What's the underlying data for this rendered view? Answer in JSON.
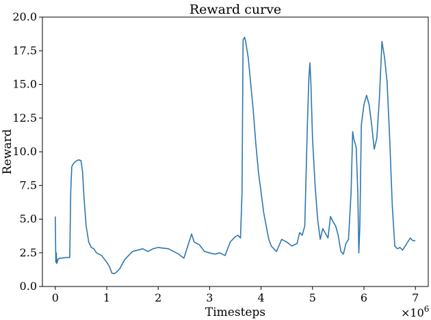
{
  "chart_data": {
    "type": "line",
    "title": "Reward curve",
    "xlabel": "Timesteps",
    "ylabel": "Reward",
    "x_multiplier_label": "×10",
    "x_multiplier_exponent": "6",
    "xlim": [
      -0.25,
      7.25
    ],
    "ylim": [
      0.0,
      20.0
    ],
    "xticks": [
      0,
      1,
      2,
      3,
      4,
      5,
      6,
      7
    ],
    "xtick_labels": [
      "0",
      "1",
      "2",
      "3",
      "4",
      "5",
      "6",
      "7"
    ],
    "yticks": [
      0.0,
      2.5,
      5.0,
      7.5,
      10.0,
      12.5,
      15.0,
      17.5,
      20.0
    ],
    "ytick_labels": [
      "0.0",
      "2.5",
      "5.0",
      "7.5",
      "10.0",
      "12.5",
      "15.0",
      "17.5",
      "20.0"
    ],
    "grid": false,
    "line_color": "#2b76b0",
    "series": [
      {
        "x": [
          0.0,
          0.01,
          0.02,
          0.03,
          0.05,
          0.08,
          0.12,
          0.2,
          0.28,
          0.3,
          0.32,
          0.35,
          0.4,
          0.45,
          0.5,
          0.53,
          0.56,
          0.6,
          0.65,
          0.7,
          0.75,
          0.8,
          0.9,
          1.0,
          1.05,
          1.1,
          1.15,
          1.2,
          1.25,
          1.35,
          1.5,
          1.7,
          1.8,
          1.9,
          2.0,
          2.1,
          2.2,
          2.3,
          2.4,
          2.5,
          2.6,
          2.65,
          2.7,
          2.8,
          2.9,
          3.0,
          3.1,
          3.2,
          3.3,
          3.4,
          3.5,
          3.55,
          3.6,
          3.63,
          3.65,
          3.68,
          3.7,
          3.75,
          3.8,
          3.85,
          3.9,
          3.95,
          4.0,
          4.05,
          4.1,
          4.15,
          4.2,
          4.3,
          4.4,
          4.5,
          4.6,
          4.7,
          4.75,
          4.8,
          4.85,
          4.9,
          4.93,
          4.95,
          4.97,
          5.0,
          5.05,
          5.1,
          5.15,
          5.2,
          5.3,
          5.35,
          5.4,
          5.45,
          5.5,
          5.55,
          5.6,
          5.65,
          5.7,
          5.75,
          5.78,
          5.8,
          5.85,
          5.88,
          5.9,
          5.92,
          5.95,
          6.0,
          6.05,
          6.1,
          6.15,
          6.2,
          6.25,
          6.3,
          6.35,
          6.4,
          6.45,
          6.5,
          6.55,
          6.6,
          6.65,
          6.7,
          6.75,
          6.8,
          6.85,
          6.9,
          6.95,
          7.0
        ],
        "values": [
          5.2,
          1.8,
          2.5,
          1.7,
          2.0,
          2.1,
          2.1,
          2.15,
          2.15,
          7.0,
          8.9,
          9.1,
          9.3,
          9.4,
          9.35,
          8.5,
          6.5,
          4.5,
          3.3,
          2.9,
          2.8,
          2.5,
          2.3,
          1.8,
          1.5,
          1.0,
          0.95,
          1.1,
          1.3,
          2.0,
          2.6,
          2.8,
          2.6,
          2.8,
          2.9,
          2.85,
          2.8,
          2.6,
          2.4,
          2.1,
          3.3,
          3.9,
          3.3,
          3.1,
          2.6,
          2.5,
          2.4,
          2.5,
          2.3,
          3.3,
          3.7,
          3.8,
          3.6,
          7.0,
          18.3,
          18.5,
          18.2,
          17.0,
          15.0,
          13.0,
          10.5,
          8.5,
          7.0,
          5.5,
          4.5,
          3.5,
          3.0,
          2.6,
          3.5,
          3.3,
          3.0,
          3.2,
          4.0,
          3.8,
          4.5,
          12.0,
          15.5,
          16.6,
          15.0,
          11.0,
          7.5,
          5.0,
          3.5,
          4.3,
          3.6,
          5.2,
          4.8,
          4.5,
          3.8,
          2.6,
          2.4,
          3.2,
          3.5,
          7.0,
          11.5,
          11.0,
          10.3,
          7.0,
          2.5,
          4.5,
          12.0,
          13.5,
          14.2,
          13.5,
          12.0,
          10.2,
          11.0,
          14.0,
          18.2,
          17.0,
          15.2,
          11.0,
          6.0,
          3.0,
          2.8,
          2.9,
          2.7,
          3.0,
          3.3,
          3.6,
          3.4,
          3.4
        ]
      }
    ]
  }
}
